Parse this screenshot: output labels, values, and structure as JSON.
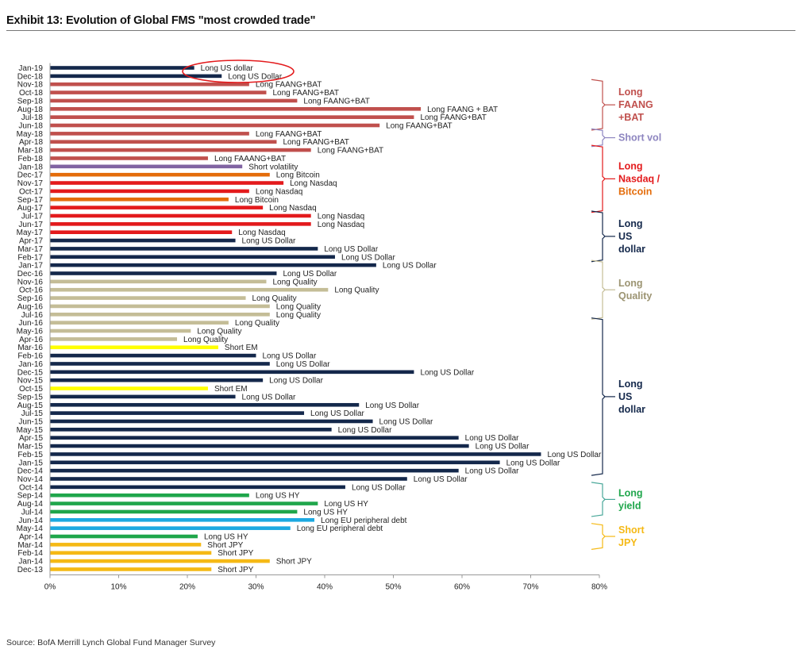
{
  "page": {
    "title": "Exhibit 13: Evolution of Global FMS \"most crowded trade\"",
    "source": "Source: BofA Merrill Lynch Global Fund Manager Survey"
  },
  "colors": {
    "usd": "#14284b",
    "faang": "#c0504d",
    "shortvol": "#8064a2",
    "nasdaq": "#e31a1c",
    "bitcoin": "#e46c0a",
    "quality": "#c4bd97",
    "shortem": "#ffff00",
    "hy": "#1fa64b",
    "eu": "#1ca9e1",
    "jpy": "#f5b915",
    "highlight": "#e31a1c"
  },
  "chart_data": {
    "type": "bar",
    "orientation": "horizontal",
    "title": "Exhibit 13: Evolution of Global FMS \"most crowded trade\"",
    "xlabel": "",
    "ylabel": "",
    "xlim": [
      0,
      80
    ],
    "x_ticks": [
      "0%",
      "10%",
      "20%",
      "30%",
      "40%",
      "50%",
      "60%",
      "70%",
      "80%"
    ],
    "grid": false,
    "highlight": "Jan-19",
    "bars": [
      {
        "month": "Jan-19",
        "value": 21,
        "label": "Long US dollar",
        "cat": "usd"
      },
      {
        "month": "Dec-18",
        "value": 25,
        "label": "Long US Dollar",
        "cat": "usd"
      },
      {
        "month": "Nov-18",
        "value": 29,
        "label": "Long FAANG+BAT",
        "cat": "faang"
      },
      {
        "month": "Oct-18",
        "value": 31.5,
        "label": "Long FAANG+BAT",
        "cat": "faang"
      },
      {
        "month": "Sep-18",
        "value": 36,
        "label": "Long FAANG+BAT",
        "cat": "faang"
      },
      {
        "month": "Aug-18",
        "value": 54,
        "label": "Long FAANG + BAT",
        "cat": "faang"
      },
      {
        "month": "Jul-18",
        "value": 53,
        "label": "Long FAANG+BAT",
        "cat": "faang"
      },
      {
        "month": "Jun-18",
        "value": 48,
        "label": "Long FAANG+BAT",
        "cat": "faang"
      },
      {
        "month": "May-18",
        "value": 29,
        "label": "Long FAANG+BAT",
        "cat": "faang"
      },
      {
        "month": "Apr-18",
        "value": 33,
        "label": "Long FAANG+BAT",
        "cat": "faang"
      },
      {
        "month": "Mar-18",
        "value": 38,
        "label": "Long FAANG+BAT",
        "cat": "faang"
      },
      {
        "month": "Feb-18",
        "value": 23,
        "label": "Long FAAANG+BAT",
        "cat": "faang"
      },
      {
        "month": "Jan-18",
        "value": 28,
        "label": "Short volatility",
        "cat": "shortvol"
      },
      {
        "month": "Dec-17",
        "value": 32,
        "label": "Long Bitcoin",
        "cat": "bitcoin"
      },
      {
        "month": "Nov-17",
        "value": 34,
        "label": "Long Nasdaq",
        "cat": "nasdaq"
      },
      {
        "month": "Oct-17",
        "value": 29,
        "label": "Long Nasdaq",
        "cat": "nasdaq"
      },
      {
        "month": "Sep-17",
        "value": 26,
        "label": "Long Bitcoin",
        "cat": "bitcoin"
      },
      {
        "month": "Aug-17",
        "value": 31,
        "label": "Long Nasdaq",
        "cat": "nasdaq"
      },
      {
        "month": "Jul-17",
        "value": 38,
        "label": "Long Nasdaq",
        "cat": "nasdaq"
      },
      {
        "month": "Jun-17",
        "value": 38,
        "label": "Long Nasdaq",
        "cat": "nasdaq"
      },
      {
        "month": "May-17",
        "value": 26.5,
        "label": "Long Nasdaq",
        "cat": "nasdaq"
      },
      {
        "month": "Apr-17",
        "value": 27,
        "label": "Long US Dollar",
        "cat": "usd"
      },
      {
        "month": "Mar-17",
        "value": 39,
        "label": "Long US Dollar",
        "cat": "usd"
      },
      {
        "month": "Feb-17",
        "value": 41.5,
        "label": "Long US Dollar",
        "cat": "usd"
      },
      {
        "month": "Jan-17",
        "value": 47.5,
        "label": "Long US Dollar",
        "cat": "usd"
      },
      {
        "month": "Dec-16",
        "value": 33,
        "label": "Long US Dollar",
        "cat": "usd"
      },
      {
        "month": "Nov-16",
        "value": 31.5,
        "label": "Long Quality",
        "cat": "quality"
      },
      {
        "month": "Oct-16",
        "value": 40.5,
        "label": "Long Quality",
        "cat": "quality"
      },
      {
        "month": "Sep-16",
        "value": 28.5,
        "label": "Long Quality",
        "cat": "quality"
      },
      {
        "month": "Aug-16",
        "value": 32,
        "label": "Long Quality",
        "cat": "quality"
      },
      {
        "month": "Jul-16",
        "value": 32,
        "label": "Long Quality",
        "cat": "quality"
      },
      {
        "month": "Jun-16",
        "value": 26,
        "label": "Long Quality",
        "cat": "quality"
      },
      {
        "month": "May-16",
        "value": 20.5,
        "label": "Long Quality",
        "cat": "quality"
      },
      {
        "month": "Apr-16",
        "value": 18.5,
        "label": "Long Quality",
        "cat": "quality"
      },
      {
        "month": "Mar-16",
        "value": 24.5,
        "label": "Short EM",
        "cat": "shortem"
      },
      {
        "month": "Feb-16",
        "value": 30,
        "label": "Long US Dollar",
        "cat": "usd"
      },
      {
        "month": "Jan-16",
        "value": 32,
        "label": "Long US Dollar",
        "cat": "usd"
      },
      {
        "month": "Dec-15",
        "value": 53,
        "label": "Long US Dollar",
        "cat": "usd"
      },
      {
        "month": "Nov-15",
        "value": 31,
        "label": "Long US Dollar",
        "cat": "usd"
      },
      {
        "month": "Oct-15",
        "value": 23,
        "label": "Short EM",
        "cat": "shortem"
      },
      {
        "month": "Sep-15",
        "value": 27,
        "label": "Long US Dollar",
        "cat": "usd"
      },
      {
        "month": "Aug-15",
        "value": 45,
        "label": "Long US Dollar",
        "cat": "usd"
      },
      {
        "month": "Jul-15",
        "value": 37,
        "label": "Long US Dollar",
        "cat": "usd"
      },
      {
        "month": "Jun-15",
        "value": 47,
        "label": "Long US Dollar",
        "cat": "usd"
      },
      {
        "month": "May-15",
        "value": 41,
        "label": "Long US Dollar",
        "cat": "usd"
      },
      {
        "month": "Apr-15",
        "value": 59.5,
        "label": "Long US Dollar",
        "cat": "usd"
      },
      {
        "month": "Mar-15",
        "value": 61,
        "label": "Long US Dollar",
        "cat": "usd"
      },
      {
        "month": "Feb-15",
        "value": 71.5,
        "label": "Long US Dollar",
        "cat": "usd"
      },
      {
        "month": "Jan-15",
        "value": 65.5,
        "label": "Long US Dollar",
        "cat": "usd"
      },
      {
        "month": "Dec-14",
        "value": 59.5,
        "label": "Long US Dollar",
        "cat": "usd"
      },
      {
        "month": "Nov-14",
        "value": 52,
        "label": "Long US Dollar",
        "cat": "usd"
      },
      {
        "month": "Oct-14",
        "value": 43,
        "label": "Long US Dollar",
        "cat": "usd"
      },
      {
        "month": "Sep-14",
        "value": 29,
        "label": "Long US HY",
        "cat": "hy"
      },
      {
        "month": "Aug-14",
        "value": 39,
        "label": "Long US HY",
        "cat": "hy"
      },
      {
        "month": "Jul-14",
        "value": 36,
        "label": "Long US HY",
        "cat": "hy"
      },
      {
        "month": "Jun-14",
        "value": 38.5,
        "label": "Long EU peripheral debt",
        "cat": "eu"
      },
      {
        "month": "May-14",
        "value": 35,
        "label": "Long EU peripheral debt",
        "cat": "eu"
      },
      {
        "month": "Apr-14",
        "value": 21.5,
        "label": "Long US HY",
        "cat": "hy"
      },
      {
        "month": "Mar-14",
        "value": 22,
        "label": "Short JPY",
        "cat": "jpy"
      },
      {
        "month": "Feb-14",
        "value": 23.5,
        "label": "Short JPY",
        "cat": "jpy"
      },
      {
        "month": "Jan-14",
        "value": 32,
        "label": "Short JPY",
        "cat": "jpy"
      },
      {
        "month": "Dec-13",
        "value": 23.5,
        "label": "Short JPY",
        "cat": "jpy"
      }
    ],
    "annotations": [
      {
        "lines": [
          "Long",
          "FAANG",
          "+BAT"
        ],
        "from": "Nov-18",
        "to": "Jun-18",
        "colors": [
          "#c0504d",
          "#c0504d",
          "#c0504d"
        ],
        "bracket": "#c0504d"
      },
      {
        "lines": [
          "Short vol"
        ],
        "from": "May-18",
        "to": "Apr-18",
        "colors": [
          "#8e86c0"
        ],
        "bracket": "#8e86c0"
      },
      {
        "lines": [
          "Long",
          "Nasdaq /",
          "Bitcoin"
        ],
        "from": "Mar-18",
        "to": "Aug-17",
        "colors": [
          "#e31a1c",
          "#e31a1c",
          "#e46c0a"
        ],
        "bracket": "#e31a1c"
      },
      {
        "lines": [
          "Long",
          "US",
          "dollar"
        ],
        "from": "Jul-17",
        "to": "Feb-17",
        "colors": [
          "#14284b",
          "#14284b",
          "#14284b"
        ],
        "bracket": "#14284b"
      },
      {
        "lines": [
          "Long",
          "Quality"
        ],
        "from": "Jan-17",
        "to": "Jul-16",
        "colors": [
          "#9c9472",
          "#9c9472"
        ],
        "bracket": "#c4bd97"
      },
      {
        "lines": [
          "Long",
          "US",
          "dollar"
        ],
        "from": "Jun-16",
        "to": "Dec-14",
        "colors": [
          "#14284b",
          "#14284b",
          "#14284b"
        ],
        "bracket": "#14284b"
      },
      {
        "lines": [
          "Long",
          "yield"
        ],
        "from": "Oct-14",
        "to": "Jul-14",
        "colors": [
          "#1fa64b",
          "#1fa64b"
        ],
        "bracket": "#4aa89a"
      },
      {
        "lines": [
          "Short",
          "JPY"
        ],
        "from": "May-14",
        "to": "Mar-14",
        "colors": [
          "#f5b915",
          "#f5b915"
        ],
        "bracket": "#f5b915"
      }
    ]
  }
}
